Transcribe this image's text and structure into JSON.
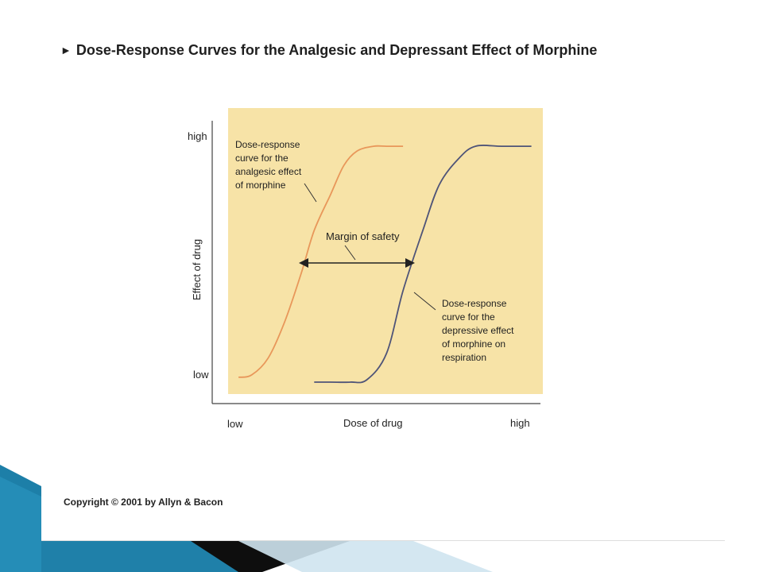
{
  "slide": {
    "title": "Dose-Response Curves for the Analgesic and Depressant Effect of Morphine",
    "title_bullet_icon": "right-triangle-bullet-icon",
    "copyright": "Copyright © 2001 by Allyn & Bacon"
  },
  "colors": {
    "panel_background": "#f7e3a7",
    "analgesic_curve": "#e8975a",
    "depressive_curve": "#4f5478",
    "axis": "#444444",
    "text": "#1f1f1f",
    "decor_blue": "#1d7fa8",
    "decor_dark": "#0e0e0e"
  },
  "chart_data": {
    "type": "line",
    "title": "Dose-Response Curves for the Analgesic and Depressant Effect of Morphine",
    "xlabel": "Dose of drug",
    "ylabel": "Effect of drug",
    "x_tick_labels": [
      "low",
      "high"
    ],
    "y_tick_labels": [
      "low",
      "high"
    ],
    "xlim": [
      0,
      100
    ],
    "ylim": [
      0,
      100
    ],
    "grid": false,
    "legend": "none",
    "series": [
      {
        "label": "Dose-response curve for the analgesic effect of morphine",
        "color_key": "analgesic_curve",
        "x": [
          8,
          12,
          17,
          22,
          27,
          31,
          36,
          40,
          44,
          49,
          53,
          58
        ],
        "y": [
          2,
          3,
          10,
          25,
          45,
          63,
          78,
          90,
          96,
          98,
          98,
          98
        ]
      },
      {
        "label": "Dose-response curve for the depressive effect of morphine on respiration",
        "color_key": "depressive_curve",
        "x": [
          31,
          36,
          42,
          47,
          53,
          58,
          64,
          69,
          75,
          80,
          88,
          97
        ],
        "y": [
          0,
          0,
          0,
          1,
          12,
          38,
          63,
          82,
          93,
          98,
          98,
          98
        ]
      }
    ],
    "annotations": [
      {
        "text_lines": [
          "Dose-response",
          "curve for the",
          "analgesic effect",
          "of morphine"
        ]
      },
      {
        "text_lines": [
          "Margin of safety"
        ]
      },
      {
        "text_lines": [
          "Dose-response",
          "curve for the",
          "depressive effect",
          "of morphine on",
          "respiration"
        ]
      }
    ]
  }
}
